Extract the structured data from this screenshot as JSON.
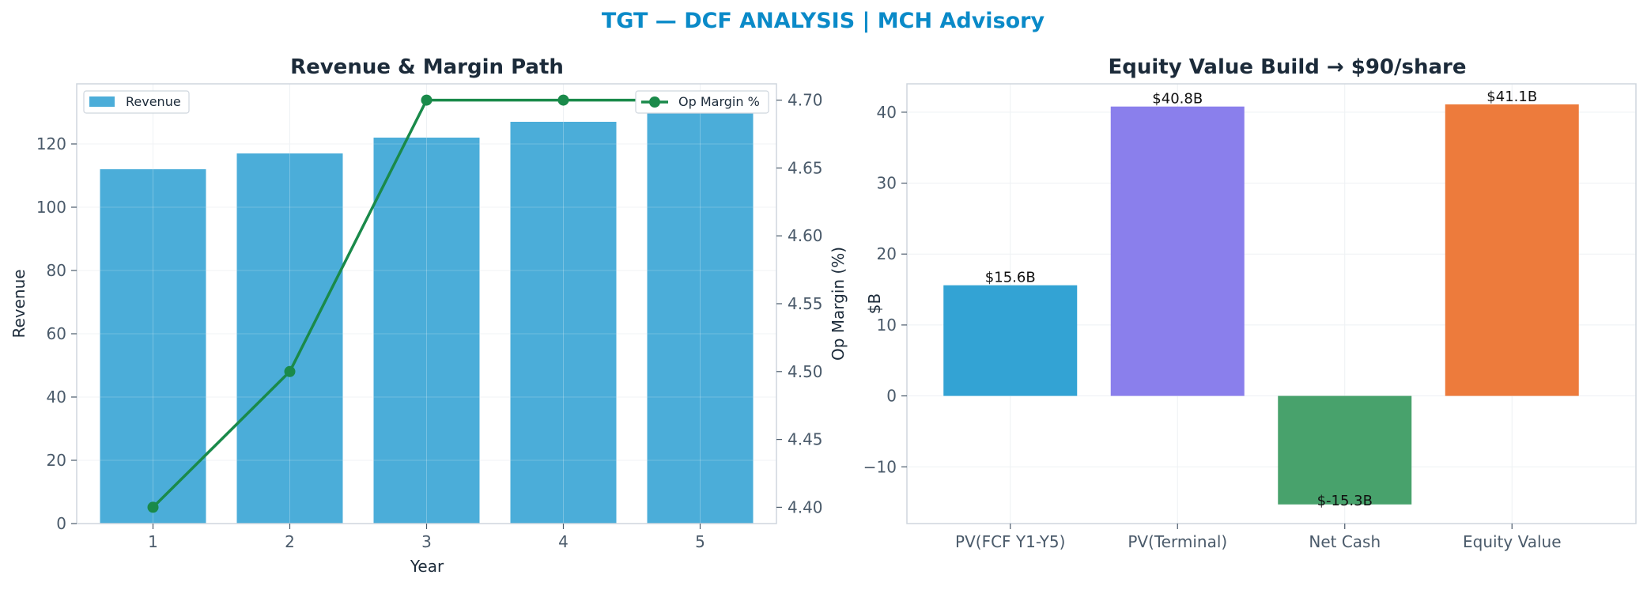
{
  "suptitle": "TGT — DCF ANALYSIS | MCH Advisory",
  "colors": {
    "suptitle": "#0a8ac8",
    "title": "#1c2b3a",
    "tick": "#4a5a6a",
    "axis": "#cfd6de",
    "grid": "#eef1f4",
    "revenue_bar": "#4badd9",
    "op_margin_line": "#1a8a4a"
  },
  "chart_data": [
    {
      "type": "bar",
      "title": "Revenue & Margin Path",
      "xlabel": "Year",
      "ylabel": "Revenue",
      "categories": [
        "1",
        "2",
        "3",
        "4",
        "5"
      ],
      "ylim": [
        0,
        139
      ],
      "yticks": [
        0,
        20,
        40,
        60,
        80,
        100,
        120
      ],
      "grid": true,
      "series": [
        {
          "name": "Revenue",
          "kind": "bar",
          "axis": "left",
          "values": [
            112,
            117,
            122,
            127,
            133
          ]
        },
        {
          "name": "Op Margin %",
          "kind": "line",
          "axis": "right",
          "marker": "circle",
          "values": [
            4.4,
            4.5,
            4.7,
            4.7,
            4.7
          ]
        }
      ],
      "y2label": "Op Margin (%)",
      "y2lim": [
        4.388,
        4.712
      ],
      "y2ticks": [
        "4.40",
        "4.45",
        "4.50",
        "4.55",
        "4.60",
        "4.65",
        "4.70"
      ],
      "legend": {
        "revenue": "top-left",
        "op_margin": "top-right"
      }
    },
    {
      "type": "bar",
      "title": "Equity Value Build → $90/share",
      "xlabel": "",
      "ylabel": "$B",
      "categories": [
        "PV(FCF Y1-Y5)",
        "PV(Terminal)",
        "Net Cash",
        "Equity Value"
      ],
      "values": [
        15.6,
        40.8,
        -15.3,
        41.1
      ],
      "data_labels": [
        "$15.6B",
        "$40.8B",
        "$-15.3B",
        "$41.1B"
      ],
      "bar_colors": [
        "#33a3d4",
        "#8a7fec",
        "#48a26c",
        "#ed7b3c"
      ],
      "ylim": [
        -18,
        44
      ],
      "yticks": [
        -10,
        0,
        10,
        20,
        30,
        40
      ],
      "ytick_labels": [
        "−10",
        "0",
        "10",
        "20",
        "30",
        "40"
      ],
      "grid": true
    }
  ]
}
